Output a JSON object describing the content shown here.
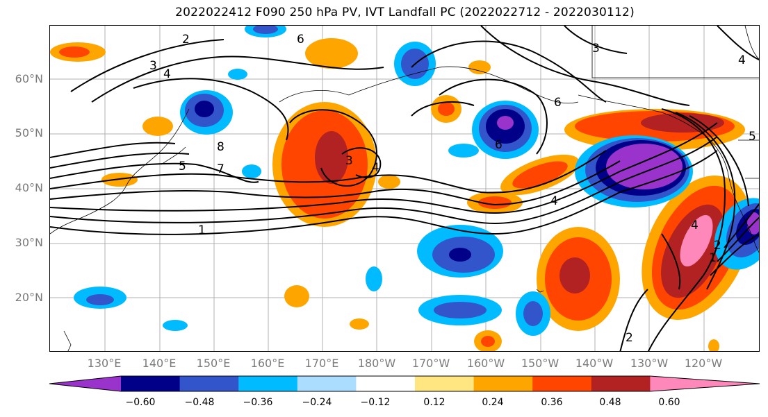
{
  "title": "2022022412 F090 250 hPa PV, IVT Landfall PC (2022022712 - 2022030112)",
  "lat_labels": [
    "60°N",
    "50°N",
    "40°N",
    "30°N",
    "20°N"
  ],
  "lon_labels": [
    "130°E",
    "140°E",
    "150°E",
    "160°E",
    "170°E",
    "180°W",
    "170°W",
    "160°W",
    "150°W",
    "140°W",
    "130°W",
    "120°W"
  ],
  "contour_labels": [
    "2",
    "3",
    "4",
    "6",
    "3",
    "6",
    "8",
    "7",
    "5",
    "3",
    "4",
    "6",
    "4",
    "1",
    "2",
    "1",
    "2",
    "4",
    "5",
    "4"
  ],
  "colorbar": {
    "ticks": [
      "−0.60",
      "−0.48",
      "−0.36",
      "−0.24",
      "−0.12",
      "0.12",
      "0.24",
      "0.36",
      "0.48",
      "0.60"
    ],
    "colors": [
      "#9933cc",
      "#000088",
      "#3355cc",
      "#00bbff",
      "#aaddff",
      "#ffffff",
      "#ffe680",
      "#ffa500",
      "#ff4500",
      "#b22222",
      "#ff88bb"
    ]
  }
}
